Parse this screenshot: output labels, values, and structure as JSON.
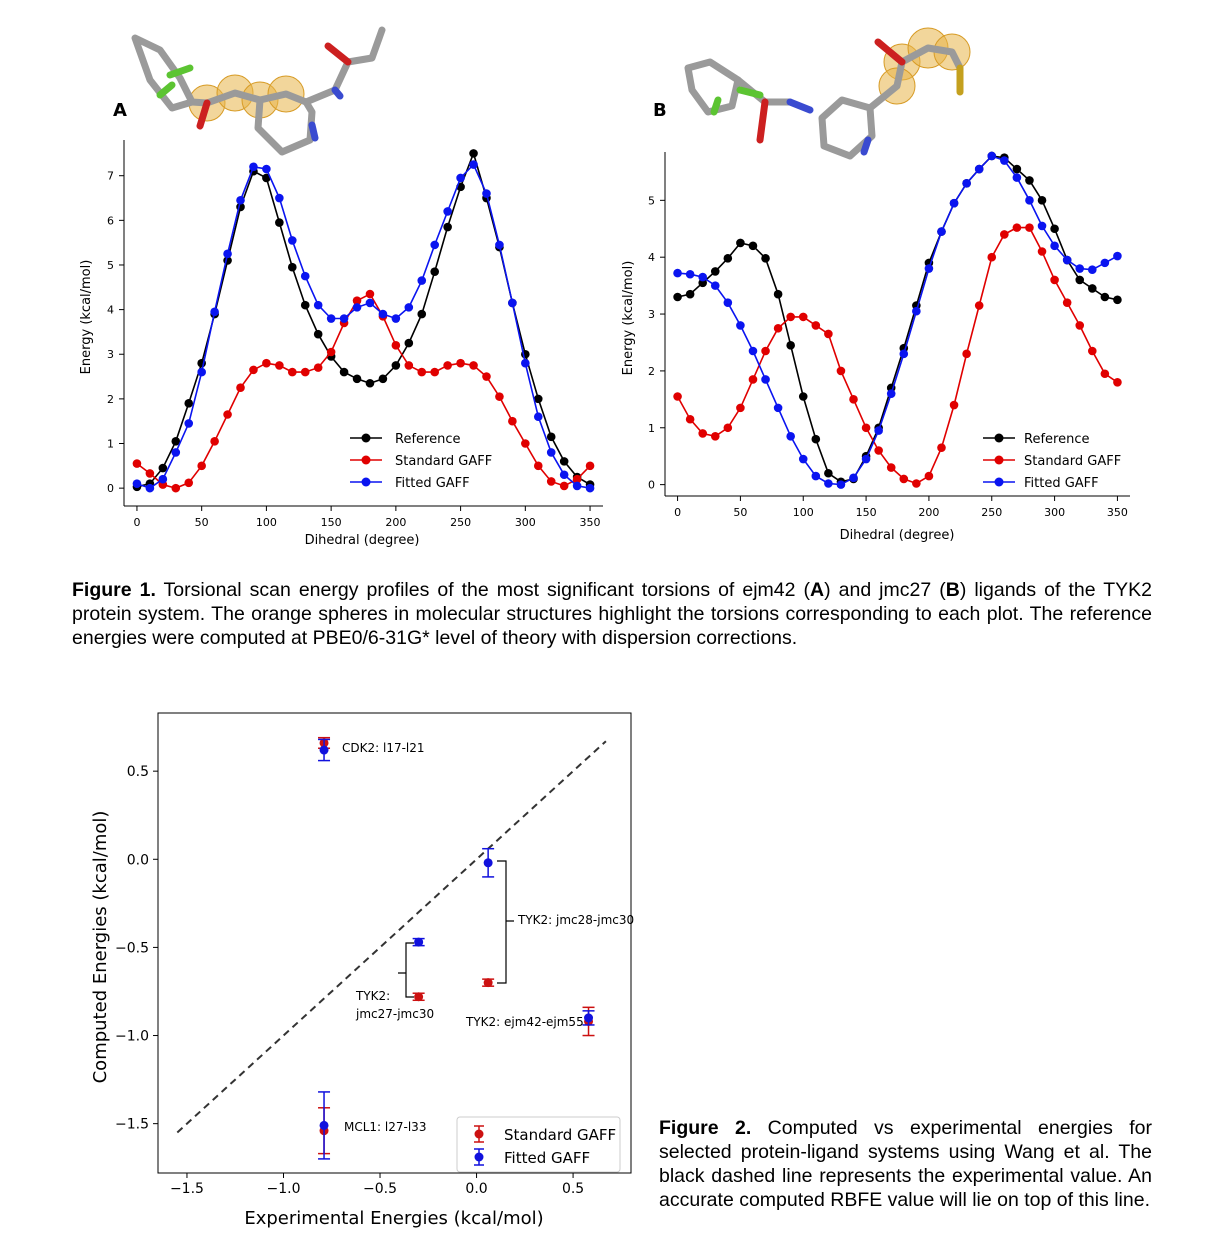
{
  "figure1": {
    "caption": {
      "label": "Figure 1.",
      "p1": " Torsional scan energy profiles of the most significant torsions of ejm42 (",
      "a": "A",
      "p2": ") and jmc27 (",
      "b": "B",
      "p3": ") ligands of the TYK2 protein system. The orange spheres in molecular structures highlight the torsions corresponding to each plot. The reference energies were computed at PBE0/6-31G* level of theory with dispersion corrections."
    },
    "panels": [
      {
        "panel_label": "A"
      },
      {
        "panel_label": "B"
      }
    ]
  },
  "figure2": {
    "caption": {
      "label": "Figure 2.",
      "text": " Computed vs experimental energies for selected protein-ligand systems using Wang et al. The black dashed line represents the experimental value. An accurate computed RBFE value will lie on top of this line."
    }
  },
  "chart_data": [
    {
      "id": "A",
      "type": "line",
      "xlabel": "Dihedral (degree)",
      "ylabel": "Energy (kcal/mol)",
      "xlim": [
        -10,
        360
      ],
      "ylim": [
        -0.4,
        7.8
      ],
      "xticks": [
        0,
        50,
        100,
        150,
        200,
        250,
        300,
        350
      ],
      "yticks": [
        0,
        1,
        2,
        3,
        4,
        5,
        6,
        7
      ],
      "legend_position": "lower-right",
      "colors": {
        "Reference": "#000000",
        "Standard GAFF": "#e00000",
        "Fitted GAFF": "#0a14f0"
      },
      "x": [
        0,
        10,
        20,
        30,
        40,
        50,
        60,
        70,
        80,
        90,
        100,
        110,
        120,
        130,
        140,
        150,
        160,
        170,
        180,
        190,
        200,
        210,
        220,
        230,
        240,
        250,
        260,
        270,
        280,
        290,
        300,
        310,
        320,
        330,
        340,
        350
      ],
      "series": [
        {
          "name": "Reference",
          "values": [
            0.03,
            0.1,
            0.45,
            1.05,
            1.9,
            2.8,
            3.9,
            5.1,
            6.3,
            7.1,
            6.95,
            5.95,
            4.95,
            4.1,
            3.45,
            2.95,
            2.6,
            2.45,
            2.35,
            2.45,
            2.75,
            3.25,
            3.9,
            4.85,
            5.85,
            6.75,
            7.5,
            6.5,
            5.4,
            4.15,
            3.0,
            2.0,
            1.15,
            0.6,
            0.25,
            0.08
          ]
        },
        {
          "name": "Standard GAFF",
          "values": [
            0.55,
            0.33,
            0.08,
            0.0,
            0.12,
            0.5,
            1.05,
            1.65,
            2.25,
            2.65,
            2.8,
            2.75,
            2.6,
            2.6,
            2.7,
            3.05,
            3.7,
            4.2,
            4.35,
            3.85,
            3.2,
            2.75,
            2.6,
            2.6,
            2.75,
            2.8,
            2.75,
            2.5,
            2.05,
            1.5,
            1.0,
            0.5,
            0.15,
            0.05,
            0.2,
            0.5
          ]
        },
        {
          "name": "Fitted GAFF",
          "values": [
            0.1,
            0.0,
            0.2,
            0.8,
            1.45,
            2.6,
            3.95,
            5.25,
            6.45,
            7.2,
            7.15,
            6.5,
            5.55,
            4.75,
            4.1,
            3.8,
            3.8,
            4.05,
            4.15,
            3.9,
            3.8,
            4.05,
            4.65,
            5.45,
            6.2,
            6.95,
            7.25,
            6.6,
            5.45,
            4.15,
            2.8,
            1.6,
            0.8,
            0.3,
            0.05,
            0.0
          ]
        }
      ]
    },
    {
      "id": "B",
      "type": "line",
      "xlabel": "Dihedral (degree)",
      "ylabel": "Energy (kcal/mol)",
      "xlim": [
        -10,
        360
      ],
      "ylim": [
        -0.2,
        5.85
      ],
      "xticks": [
        0,
        50,
        100,
        150,
        200,
        250,
        300,
        350
      ],
      "yticks": [
        0,
        1,
        2,
        3,
        4,
        5
      ],
      "legend_position": "lower-right",
      "colors": {
        "Reference": "#000000",
        "Standard GAFF": "#e00000",
        "Fitted GAFF": "#0a14f0"
      },
      "x": [
        0,
        10,
        20,
        30,
        40,
        50,
        60,
        70,
        80,
        90,
        100,
        110,
        120,
        130,
        140,
        150,
        160,
        170,
        180,
        190,
        200,
        210,
        220,
        230,
        240,
        250,
        260,
        270,
        280,
        290,
        300,
        310,
        320,
        330,
        340,
        350
      ],
      "series": [
        {
          "name": "Reference",
          "values": [
            3.3,
            3.35,
            3.55,
            3.75,
            3.98,
            4.25,
            4.2,
            3.98,
            3.35,
            2.45,
            1.55,
            0.8,
            0.2,
            0.05,
            0.1,
            0.5,
            1.0,
            1.7,
            2.4,
            3.15,
            3.9,
            4.45,
            4.95,
            5.3,
            5.55,
            5.78,
            5.75,
            5.55,
            5.35,
            5.0,
            4.5,
            3.95,
            3.6,
            3.45,
            3.3,
            3.25
          ]
        },
        {
          "name": "Standard GAFF",
          "values": [
            1.55,
            1.15,
            0.9,
            0.85,
            1.0,
            1.35,
            1.85,
            2.35,
            2.75,
            2.95,
            2.95,
            2.8,
            2.65,
            2.0,
            1.5,
            1.0,
            0.6,
            0.3,
            0.1,
            0.02,
            0.15,
            0.65,
            1.4,
            2.3,
            3.15,
            4.0,
            4.4,
            4.52,
            4.52,
            4.1,
            3.6,
            3.2,
            2.8,
            2.35,
            1.95,
            1.8
          ]
        },
        {
          "name": "Fitted GAFF",
          "values": [
            3.72,
            3.7,
            3.65,
            3.5,
            3.2,
            2.8,
            2.35,
            1.85,
            1.35,
            0.85,
            0.45,
            0.15,
            0.02,
            0.0,
            0.12,
            0.45,
            0.95,
            1.6,
            2.3,
            3.05,
            3.8,
            4.45,
            4.95,
            5.3,
            5.55,
            5.78,
            5.7,
            5.4,
            5.0,
            4.55,
            4.2,
            3.95,
            3.8,
            3.78,
            3.9,
            4.02
          ]
        }
      ]
    },
    {
      "id": "fig2",
      "type": "scatter",
      "xlabel": "Experimental Energies (kcal/mol)",
      "ylabel": "Computed Energies (kcal/mol)",
      "xlim": [
        -1.65,
        0.8
      ],
      "ylim": [
        -1.78,
        0.83
      ],
      "xticks": [
        -1.5,
        -1.0,
        -0.5,
        0.0,
        0.5
      ],
      "xtick_labels": [
        "−1.5",
        "−1.0",
        "−0.5",
        "0.0",
        "0.5"
      ],
      "yticks": [
        -1.5,
        -1.0,
        -0.5,
        0.0,
        0.5
      ],
      "ytick_labels": [
        "−1.5",
        "−1.0",
        "−0.5",
        "0.0",
        "0.5"
      ],
      "legend_position": "lower-right",
      "diagonal": {
        "from": [
          -1.55,
          -1.55
        ],
        "to": [
          0.67,
          0.67
        ],
        "style": "dashed",
        "color": "#333333"
      },
      "colors": {
        "Standard GAFF": "#cc1111",
        "Fitted GAFF": "#1111dd"
      },
      "series": [
        {
          "name": "Standard GAFF",
          "points": [
            {
              "x": -0.79,
              "y": 0.66,
              "err": 0.03
            },
            {
              "x": -0.3,
              "y": -0.78,
              "err": 0.02
            },
            {
              "x": 0.06,
              "y": -0.7,
              "err": 0.02
            },
            {
              "x": 0.58,
              "y": -0.92,
              "err": 0.08
            },
            {
              "x": -0.79,
              "y": -1.54,
              "err": 0.13
            }
          ]
        },
        {
          "name": "Fitted GAFF",
          "points": [
            {
              "x": -0.79,
              "y": 0.62,
              "err": 0.06
            },
            {
              "x": -0.3,
              "y": -0.47,
              "err": 0.02
            },
            {
              "x": 0.06,
              "y": -0.02,
              "err": 0.08
            },
            {
              "x": 0.58,
              "y": -0.9,
              "err": 0.04
            },
            {
              "x": -0.79,
              "y": -1.51,
              "err": 0.19
            }
          ]
        }
      ],
      "annotations": {
        "cdk2": "CDK2: l17-l21",
        "jmc28": "TYK2: jmc28-jmc30",
        "jmc27_line1": "TYK2:",
        "jmc27_line2": "jmc27-jmc30",
        "ejm42": "TYK2: ejm42-ejm55",
        "mcl1": "MCL1: l27-l33"
      }
    }
  ]
}
